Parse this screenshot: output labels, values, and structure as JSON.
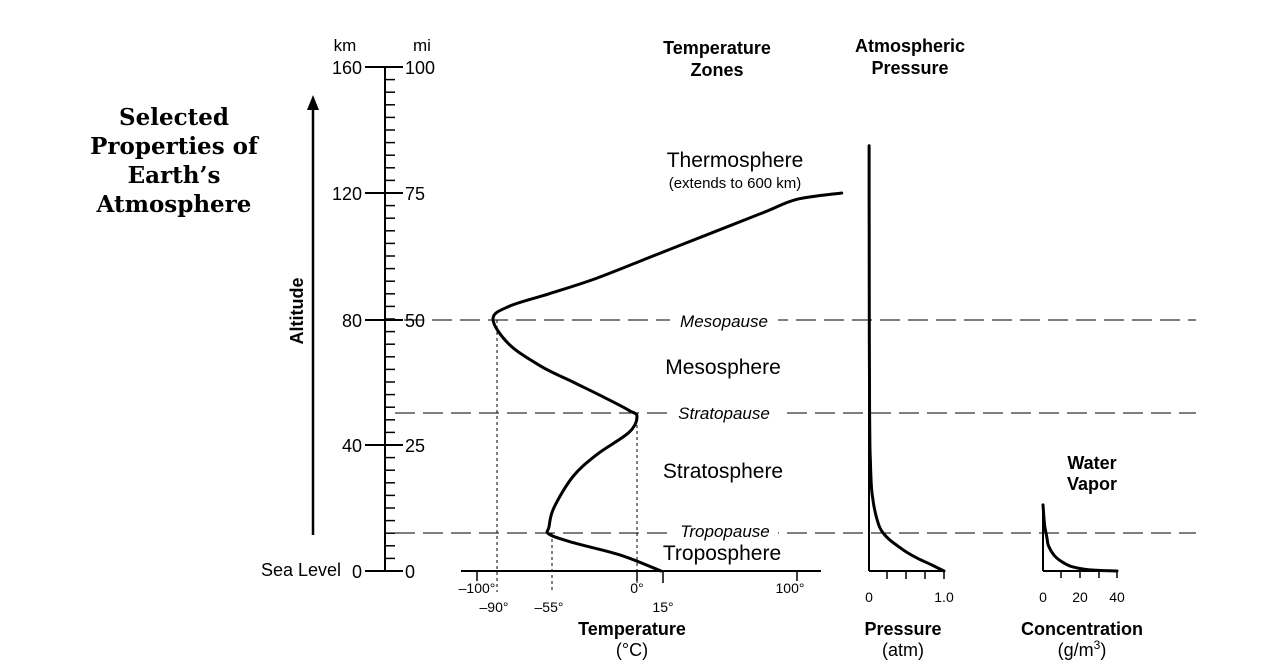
{
  "title_lines": [
    "Selected",
    "Properties of",
    "Earth’s",
    "Atmosphere"
  ],
  "altitude_label": "Altitude",
  "units": {
    "km": "km",
    "mi": "mi"
  },
  "sea_level_label": "Sea Level",
  "km_ticks": [
    "160",
    "120",
    "80",
    "40",
    "0"
  ],
  "mi_ticks": [
    "100",
    "75",
    "50",
    "25",
    "0"
  ],
  "headings": {
    "temperature_zones": [
      "Temperature",
      "Zones"
    ],
    "atmospheric_pressure": [
      "Atmospheric",
      "Pressure"
    ],
    "water_vapor": [
      "Water",
      "Vapor"
    ]
  },
  "zones": {
    "thermosphere": "Thermosphere",
    "thermosphere_note": "(extends to 600 km)",
    "mesopause": "Mesopause",
    "mesosphere": "Mesosphere",
    "stratopause": "Stratopause",
    "stratosphere": "Stratosphere",
    "tropopause": "Tropopause",
    "troposphere": "Troposphere"
  },
  "temperature_axis": {
    "top_labels": [
      "–100°",
      "0°",
      "100°"
    ],
    "bottom_labels": [
      "–90°",
      "–55°",
      "15°"
    ],
    "title": "Temperature",
    "unit": "(°C)"
  },
  "pressure_axis": {
    "labels": [
      "0",
      "1.0"
    ],
    "title": "Pressure",
    "unit": "(atm)"
  },
  "vapor_axis": {
    "labels": [
      "0",
      "20",
      "40"
    ],
    "title": "Concentration",
    "unit_base": "(g/m",
    "unit_exp": "3",
    "unit_close": ")"
  },
  "chart_data": [
    {
      "type": "line",
      "name": "temperature profile",
      "xlabel": "Temperature (°C)",
      "ylabel": "Altitude (km)",
      "xlim": [
        -110,
        125
      ],
      "ylim": [
        0,
        160
      ],
      "x": [
        15,
        -10,
        -40,
        -55,
        -55,
        -52,
        -40,
        -25,
        -5,
        0,
        -5,
        -20,
        -40,
        -60,
        -80,
        -90,
        -80,
        -55,
        -25,
        10,
        50,
        80,
        100,
        128
      ],
      "y": [
        0,
        5,
        9,
        11.7,
        14,
        20,
        30,
        37,
        44,
        49,
        51,
        55,
        60,
        65,
        72,
        80,
        84,
        88,
        93,
        100,
        108,
        114,
        118,
        120
      ]
    },
    {
      "type": "line",
      "name": "atmospheric pressure",
      "xlabel": "Pressure (atm)",
      "ylabel": "Altitude (km)",
      "xlim": [
        0,
        1.0
      ],
      "ylim": [
        0,
        160
      ],
      "x": [
        1.0,
        0.83,
        0.65,
        0.5,
        0.38,
        0.27,
        0.19,
        0.14,
        0.1,
        0.07,
        0.05,
        0.035,
        0.025,
        0.018,
        0.012,
        0.008,
        0.006,
        0.004,
        0.003,
        0.002,
        0.001
      ],
      "y": [
        0,
        2,
        4,
        6,
        8,
        10,
        12,
        14,
        17,
        20,
        23,
        26,
        30,
        35,
        40,
        50,
        60,
        80,
        100,
        120,
        135
      ]
    },
    {
      "type": "line",
      "name": "water vapor",
      "xlabel": "Concentration (g/m3)",
      "ylabel": "Altitude (km)",
      "xlim": [
        0,
        40
      ],
      "ylim": [
        0,
        160
      ],
      "x": [
        40,
        30,
        22,
        15,
        10,
        6,
        3,
        2,
        1,
        0.5,
        0
      ],
      "y": [
        0,
        0.2,
        0.6,
        1.5,
        3,
        5,
        8,
        11,
        14,
        17,
        21
      ]
    }
  ]
}
